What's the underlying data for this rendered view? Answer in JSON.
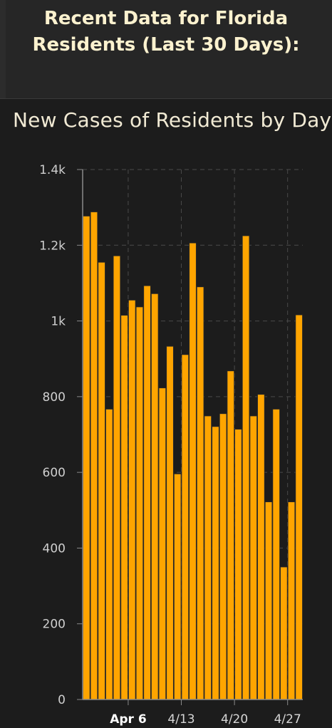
{
  "header": {
    "title_line1": "Recent Data for Florida",
    "title_line2": "Residents (Last 30 Days):"
  },
  "colors": {
    "bar": "#ffa500",
    "bar_edge": "#2a2a2a",
    "grid": "#4a4a4a",
    "axis": "#8a8a8a"
  },
  "chart_data": {
    "type": "bar",
    "title": "New Cases of Residents by Day",
    "xlabel": "",
    "ylabel": "",
    "ylim": [
      0,
      1400
    ],
    "y_ticks": [
      0,
      200,
      400,
      600,
      800,
      1000,
      1200,
      1400
    ],
    "y_tick_labels": [
      "0",
      "200",
      "400",
      "600",
      "800",
      "1k",
      "1.2k",
      "1.4k"
    ],
    "x_tick_labels": [
      {
        "label": "Apr 6",
        "bar_index": 6
      },
      {
        "label": "4/13",
        "bar_index": 13
      },
      {
        "label": "4/20",
        "bar_index": 20
      },
      {
        "label": "4/27",
        "bar_index": 27
      }
    ],
    "grid": true,
    "series": [
      {
        "values": [
          1277,
          1288,
          1155,
          767,
          1172,
          1015,
          1055,
          1037,
          1093,
          1072,
          823,
          933,
          596,
          911,
          1206,
          1090,
          749,
          721,
          755,
          868,
          714,
          1225,
          749,
          806,
          522,
          767,
          350,
          522,
          1016
        ]
      }
    ]
  }
}
